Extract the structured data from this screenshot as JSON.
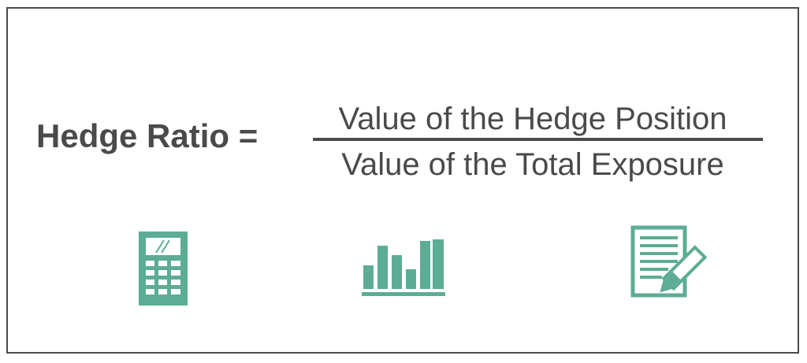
{
  "formula": {
    "lhs": "Hedge Ratio =",
    "numerator": "Value of the Hedge Position",
    "denominator": "Value of the Total Exposure"
  },
  "icons": [
    {
      "name": "calculator-icon"
    },
    {
      "name": "bar-chart-icon"
    },
    {
      "name": "document-pencil-icon"
    }
  ],
  "colors": {
    "text": "#4a4a4a",
    "accent": "#5dac95",
    "border": "#4a4a4a"
  }
}
